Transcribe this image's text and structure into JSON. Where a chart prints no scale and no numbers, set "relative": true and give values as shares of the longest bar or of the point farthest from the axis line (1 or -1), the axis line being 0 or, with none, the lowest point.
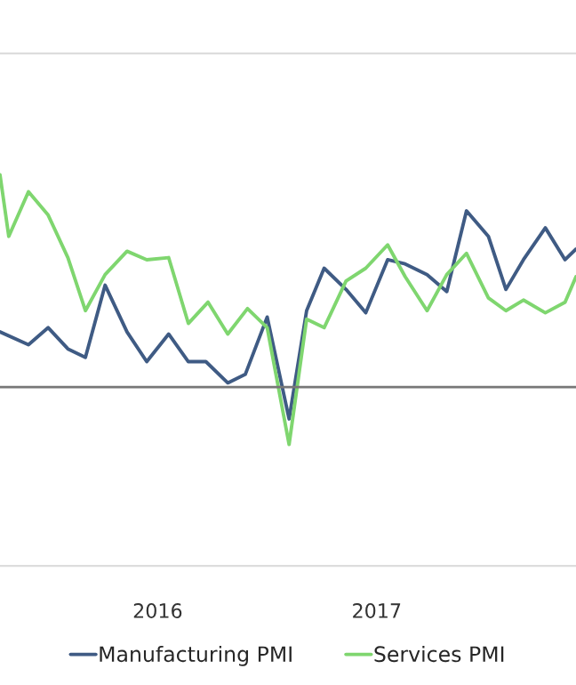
{
  "chart_data": {
    "type": "line",
    "relative": true,
    "xlim": [
      2015.28,
      2017.91
    ],
    "xticks": [
      2016,
      2017
    ],
    "legend": "bottom",
    "grid": false,
    "series": [
      {
        "name": "Manufacturing PMI",
        "color": "#3f5b84",
        "x": [
          2015.28,
          2015.41,
          2015.5,
          2015.59,
          2015.67,
          2015.76,
          2015.86,
          2015.95,
          2016.05,
          2016.14,
          2016.22,
          2016.32,
          2016.4,
          2016.5,
          2016.6,
          2016.68,
          2016.76,
          2016.86,
          2016.95,
          2017.05,
          2017.13,
          2017.23,
          2017.32,
          2017.41,
          2017.51,
          2017.59,
          2017.67,
          2017.77,
          2017.86,
          2017.91
        ],
        "values": [
          0.26,
          0.2,
          0.28,
          0.18,
          0.14,
          0.48,
          0.26,
          0.12,
          0.25,
          0.12,
          0.12,
          0.02,
          0.06,
          0.33,
          -0.15,
          0.36,
          0.56,
          0.46,
          0.35,
          0.6,
          0.58,
          0.53,
          0.45,
          0.83,
          0.71,
          0.46,
          0.6,
          0.75,
          0.6,
          0.65
        ]
      },
      {
        "name": "Services PMI",
        "color": "#7fd66f",
        "x": [
          2015.28,
          2015.32,
          2015.41,
          2015.5,
          2015.59,
          2015.67,
          2015.76,
          2015.86,
          2015.95,
          2016.05,
          2016.14,
          2016.23,
          2016.32,
          2016.41,
          2016.5,
          2016.6,
          2016.68,
          2016.76,
          2016.86,
          2016.95,
          2017.05,
          2017.13,
          2017.23,
          2017.32,
          2017.41,
          2017.51,
          2017.59,
          2017.67,
          2017.77,
          2017.86,
          2017.91
        ],
        "values": [
          1.0,
          0.71,
          0.92,
          0.81,
          0.61,
          0.36,
          0.53,
          0.64,
          0.6,
          0.61,
          0.3,
          0.4,
          0.25,
          0.37,
          0.28,
          -0.27,
          0.32,
          0.28,
          0.5,
          0.56,
          0.67,
          0.52,
          0.36,
          0.53,
          0.63,
          0.42,
          0.36,
          0.41,
          0.35,
          0.4,
          0.52
        ]
      }
    ]
  }
}
